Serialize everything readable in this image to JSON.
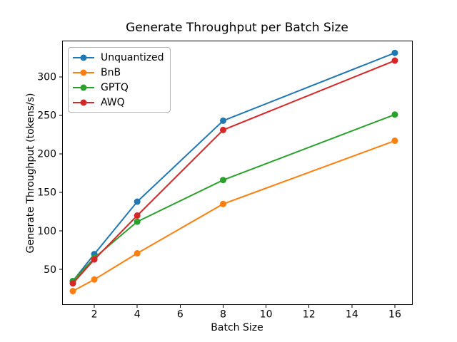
{
  "chart_data": {
    "type": "line",
    "title": "Generate Throughput per Batch Size",
    "xlabel": "Batch Size",
    "ylabel": "Generate Throughput (tokens/s)",
    "x": [
      1,
      2,
      4,
      8,
      16
    ],
    "series": [
      {
        "name": "Unquantized",
        "color": "#1f77b4",
        "values": [
          35,
          70,
          138,
          243,
          331
        ]
      },
      {
        "name": "BnB",
        "color": "#ff7f0e",
        "values": [
          22,
          37,
          71,
          135,
          217
        ]
      },
      {
        "name": "GPTQ",
        "color": "#2ca02c",
        "values": [
          35,
          65,
          112,
          166,
          251
        ]
      },
      {
        "name": "AWQ",
        "color": "#d62728",
        "values": [
          32,
          63,
          120,
          231,
          321
        ]
      }
    ],
    "xticks": [
      2,
      4,
      6,
      8,
      10,
      12,
      14,
      16
    ],
    "yticks": [
      50,
      100,
      150,
      200,
      250,
      300
    ],
    "xlim": [
      0.5,
      16.8
    ],
    "ylim": [
      4,
      346
    ],
    "legend_position": "upper left",
    "grid": false,
    "marker": "o",
    "background": "#ffffff",
    "axis_color": "#000000"
  }
}
